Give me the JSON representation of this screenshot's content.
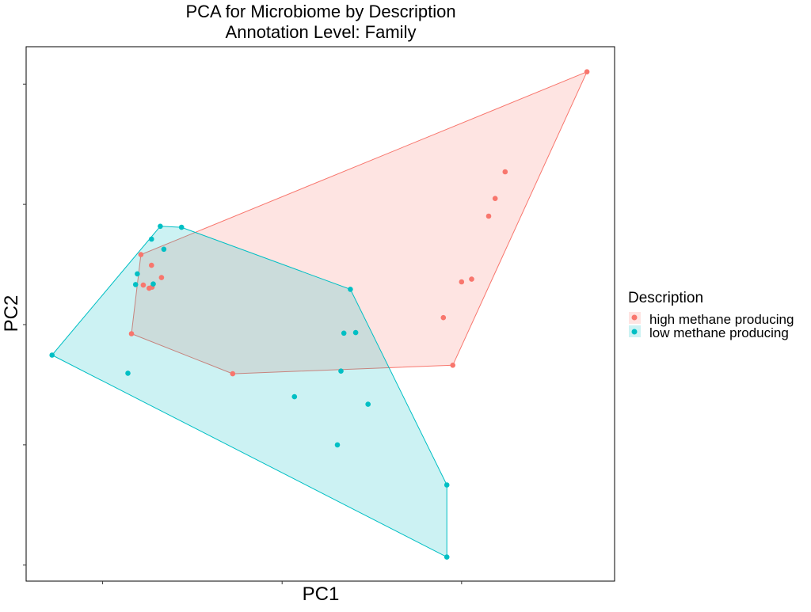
{
  "chart_data": {
    "type": "scatter",
    "title_line1": "PCA for Microbiome by Description",
    "title_line2": "Annotation Level: Family",
    "xlabel": "PC1",
    "ylabel": "PC2",
    "xlim": [
      0,
      100
    ],
    "ylim": [
      0,
      100
    ],
    "x_tick_values": [
      13,
      43.5,
      74
    ],
    "y_tick_values": [
      3,
      25.5,
      48,
      70.5,
      93
    ],
    "grid": false,
    "hull_polygons": true,
    "legend_position": "right",
    "legend": {
      "title": "Description",
      "entries": [
        "high methane producing",
        "low methane producing"
      ]
    },
    "series": [
      {
        "name": "high methane producing",
        "color": "#F8766D",
        "points": [
          [
            95.3,
            95.3
          ],
          [
            81.4,
            76.6
          ],
          [
            79.7,
            71.6
          ],
          [
            78.6,
            68.3
          ],
          [
            75.7,
            56.5
          ],
          [
            74.0,
            56.0
          ],
          [
            70.9,
            49.3
          ],
          [
            72.5,
            40.4
          ],
          [
            35.1,
            38.8
          ],
          [
            17.9,
            46.3
          ],
          [
            19.5,
            61.1
          ],
          [
            21.3,
            59.1
          ],
          [
            23.0,
            56.8
          ],
          [
            20.9,
            54.8
          ],
          [
            21.4,
            55.0
          ],
          [
            19.9,
            55.4
          ]
        ]
      },
      {
        "name": "low methane producing",
        "color": "#00BFC4",
        "points": [
          [
            4.4,
            42.3
          ],
          [
            22.8,
            66.4
          ],
          [
            26.4,
            66.2
          ],
          [
            21.3,
            64.0
          ],
          [
            23.4,
            62.1
          ],
          [
            55.1,
            54.6
          ],
          [
            18.9,
            57.5
          ],
          [
            18.6,
            55.5
          ],
          [
            21.6,
            55.6
          ],
          [
            54.0,
            46.4
          ],
          [
            56.0,
            46.5
          ],
          [
            53.5,
            39.3
          ],
          [
            17.3,
            38.9
          ],
          [
            45.6,
            34.5
          ],
          [
            58.1,
            33.1
          ],
          [
            52.9,
            25.5
          ],
          [
            71.5,
            18.0
          ],
          [
            71.5,
            4.5
          ]
        ]
      }
    ]
  }
}
